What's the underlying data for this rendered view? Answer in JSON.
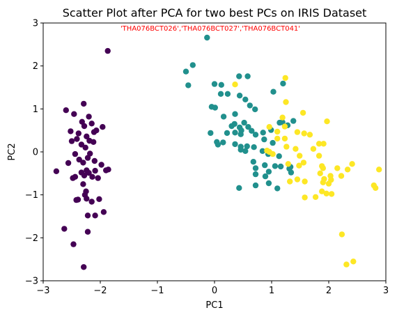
{
  "chart_data": {
    "type": "scatter",
    "title": "Scatter Plot after PCA for two best PCs on IRIS Dataset",
    "xlabel": "PC1",
    "ylabel": "PC2",
    "annotation": "'THA076BCT026','THA076BCT027','THA076BCT041'",
    "annotation_color": "#ff0000",
    "xlim": [
      -3,
      3
    ],
    "ylim": [
      -3,
      3
    ],
    "xticks": [
      -3,
      -2,
      -1,
      0,
      1,
      2,
      3
    ],
    "yticks": [
      -3,
      -2,
      -1,
      0,
      1,
      2,
      3
    ],
    "xtick_labels": [
      "−3",
      "−2",
      "−1",
      "0",
      "1",
      "2",
      "3"
    ],
    "ytick_labels": [
      "−3",
      "−2",
      "−1",
      "0",
      "1",
      "2",
      "3"
    ],
    "grid": false,
    "series": [
      {
        "color": "#440154",
        "points": [
          [
            -1.87,
            2.35
          ],
          [
            -2.29,
            1.12
          ],
          [
            -2.6,
            0.97
          ],
          [
            -2.46,
            0.88
          ],
          [
            -2.2,
            0.82
          ],
          [
            -2.32,
            0.7
          ],
          [
            -2.15,
            0.66
          ],
          [
            -2.52,
            0.48
          ],
          [
            -2.38,
            0.43
          ],
          [
            -2.28,
            0.6
          ],
          [
            -1.96,
            0.58
          ],
          [
            -2.11,
            0.46
          ],
          [
            -2.07,
            0.5
          ],
          [
            -2.24,
            0.36
          ],
          [
            -2.41,
            0.3
          ],
          [
            -2.19,
            0.26
          ],
          [
            -2.33,
            0.17
          ],
          [
            -2.12,
            0.23
          ],
          [
            -2.26,
            0.1
          ],
          [
            -2.5,
            0.25
          ],
          [
            -2.44,
            -0.05
          ],
          [
            -2.18,
            -0.04
          ],
          [
            -2.22,
            -0.14
          ],
          [
            -2.37,
            -0.18
          ],
          [
            -2.56,
            -0.26
          ],
          [
            -2.3,
            -0.25
          ],
          [
            -2.1,
            -0.21
          ],
          [
            -1.98,
            -0.3
          ],
          [
            -1.9,
            -0.43
          ],
          [
            -1.86,
            -0.41
          ],
          [
            -2.77,
            -0.45
          ],
          [
            -2.24,
            -0.43
          ],
          [
            -2.09,
            -0.44
          ],
          [
            -2.2,
            -0.49
          ],
          [
            -2.33,
            -0.48
          ],
          [
            -2.44,
            -0.58
          ],
          [
            -2.28,
            -0.55
          ],
          [
            -2.14,
            -0.58
          ],
          [
            -2.04,
            -0.61
          ],
          [
            -2.48,
            -0.61
          ],
          [
            -2.3,
            -0.75
          ],
          [
            -2.25,
            -0.92
          ],
          [
            -2.27,
            -1.0
          ],
          [
            -2.24,
            -1.09
          ],
          [
            -2.39,
            -1.11
          ],
          [
            -2.42,
            -1.12
          ],
          [
            -2.02,
            -1.1
          ],
          [
            -2.15,
            -1.16
          ],
          [
            -1.94,
            -1.4
          ],
          [
            -2.22,
            -1.48
          ],
          [
            -2.09,
            -1.48
          ],
          [
            -2.63,
            -1.79
          ],
          [
            -2.22,
            -1.86
          ],
          [
            -2.47,
            -2.15
          ],
          [
            -2.29,
            -2.68
          ]
        ]
      },
      {
        "color": "#21908d",
        "points": [
          [
            -0.13,
            2.66
          ],
          [
            -0.38,
            2.02
          ],
          [
            -0.5,
            1.87
          ],
          [
            -0.46,
            1.55
          ],
          [
            0.0,
            1.58
          ],
          [
            0.12,
            1.56
          ],
          [
            0.43,
            1.76
          ],
          [
            0.58,
            1.76
          ],
          [
            1.03,
            1.4
          ],
          [
            1.2,
            1.59
          ],
          [
            0.11,
            1.35
          ],
          [
            0.23,
            1.35
          ],
          [
            0.44,
            1.31
          ],
          [
            0.54,
            1.22
          ],
          [
            0.62,
            1.08
          ],
          [
            0.71,
            0.99
          ],
          [
            -0.05,
            1.05
          ],
          [
            0.01,
            1.03
          ],
          [
            0.16,
            0.82
          ],
          [
            0.36,
            0.88
          ],
          [
            0.52,
            0.68
          ],
          [
            0.35,
            0.65
          ],
          [
            0.44,
            0.57
          ],
          [
            0.3,
            0.6
          ],
          [
            0.47,
            0.5
          ],
          [
            0.59,
            0.58
          ],
          [
            0.65,
            0.49
          ],
          [
            0.85,
            0.45
          ],
          [
            0.99,
            0.51
          ],
          [
            1.14,
            0.68
          ],
          [
            1.19,
            0.69
          ],
          [
            1.28,
            0.62
          ],
          [
            1.38,
            0.72
          ],
          [
            -0.07,
            0.44
          ],
          [
            0.22,
            0.44
          ],
          [
            0.36,
            0.45
          ],
          [
            0.46,
            0.41
          ],
          [
            0.72,
            0.4
          ],
          [
            0.87,
            0.29
          ],
          [
            1.02,
            0.21
          ],
          [
            0.04,
            0.23
          ],
          [
            0.06,
            0.17
          ],
          [
            0.15,
            0.22
          ],
          [
            0.36,
            0.18
          ],
          [
            0.46,
            0.12
          ],
          [
            0.57,
            0.13
          ],
          [
            0.69,
            0.11
          ],
          [
            0.54,
            0.02
          ],
          [
            0.46,
            0.05
          ],
          [
            0.84,
            0.02
          ],
          [
            0.94,
            -0.05
          ],
          [
            1.13,
            -0.1
          ],
          [
            0.68,
            -0.23
          ],
          [
            0.88,
            -0.31
          ],
          [
            1.06,
            -0.33
          ],
          [
            1.16,
            -0.34
          ],
          [
            0.72,
            -0.38
          ],
          [
            0.95,
            -0.46
          ],
          [
            1.33,
            -0.35
          ],
          [
            0.89,
            -0.57
          ],
          [
            0.72,
            -0.52
          ],
          [
            1.31,
            -0.39
          ],
          [
            0.72,
            -0.78
          ],
          [
            0.95,
            -0.73
          ],
          [
            0.43,
            -0.84
          ],
          [
            1.1,
            -0.85
          ],
          [
            1.34,
            -0.48
          ]
        ]
      },
      {
        "color": "#fde725",
        "points": [
          [
            1.24,
            1.72
          ],
          [
            0.36,
            1.57
          ],
          [
            1.25,
            1.16
          ],
          [
            1.55,
            0.91
          ],
          [
            1.97,
            0.71
          ],
          [
            1.19,
            0.8
          ],
          [
            1.23,
            0.59
          ],
          [
            0.96,
            0.58
          ],
          [
            1.1,
            0.47
          ],
          [
            1.45,
            0.46
          ],
          [
            1.57,
            0.43
          ],
          [
            1.67,
            0.4
          ],
          [
            1.1,
            0.31
          ],
          [
            1.23,
            0.31
          ],
          [
            1.83,
            0.19
          ],
          [
            1.91,
            0.19
          ],
          [
            1.26,
            0.12
          ],
          [
            1.42,
            0.07
          ],
          [
            1.73,
            0.07
          ],
          [
            0.92,
            0.03
          ],
          [
            0.96,
            0.0
          ],
          [
            1.02,
            -0.05
          ],
          [
            1.49,
            -0.09
          ],
          [
            1.83,
            -0.09
          ],
          [
            1.56,
            -0.25
          ],
          [
            1.29,
            -0.28
          ],
          [
            1.48,
            -0.32
          ],
          [
            1.88,
            -0.33
          ],
          [
            2.41,
            -0.28
          ],
          [
            1.9,
            -0.38
          ],
          [
            2.15,
            -0.38
          ],
          [
            2.33,
            -0.41
          ],
          [
            2.88,
            -0.41
          ],
          [
            1.85,
            -0.5
          ],
          [
            2.03,
            -0.56
          ],
          [
            2.22,
            -0.56
          ],
          [
            1.45,
            -0.64
          ],
          [
            1.92,
            -0.63
          ],
          [
            2.04,
            -0.65
          ],
          [
            1.32,
            -0.69
          ],
          [
            1.58,
            -0.69
          ],
          [
            1.9,
            -0.71
          ],
          [
            2.0,
            -0.74
          ],
          [
            2.79,
            -0.78
          ],
          [
            2.82,
            -0.84
          ],
          [
            1.88,
            -0.92
          ],
          [
            1.96,
            -0.97
          ],
          [
            2.05,
            -0.98
          ],
          [
            1.77,
            -1.05
          ],
          [
            1.58,
            -1.06
          ],
          [
            2.23,
            -1.92
          ],
          [
            2.31,
            -2.62
          ],
          [
            2.43,
            -2.55
          ]
        ]
      }
    ]
  }
}
